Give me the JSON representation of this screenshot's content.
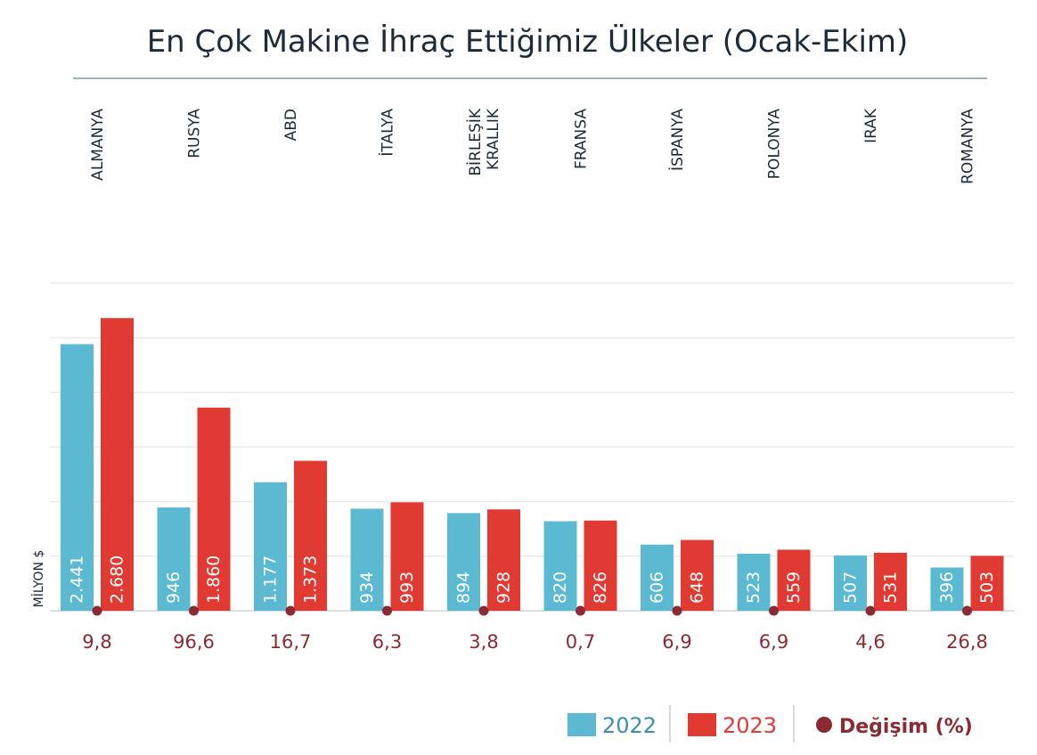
{
  "chart_data": {
    "type": "bar",
    "title": "En Çok Makine İhraç Ettiğimiz Ülkeler (Ocak-Ekim)",
    "ylabel": "MİLYON $",
    "ylim": [
      0,
      3000
    ],
    "grid": true,
    "legend_position": "bottom-right",
    "categories": [
      [
        "ALMANYA"
      ],
      [
        "RUSYA"
      ],
      [
        "ABD"
      ],
      [
        "İTALYA"
      ],
      [
        "BİRLEŞİK",
        "KRALLIK"
      ],
      [
        "FRANSA"
      ],
      [
        "İSPANYA"
      ],
      [
        "POLONYA"
      ],
      [
        "IRAK"
      ],
      [
        "ROMANYA"
      ]
    ],
    "series": [
      {
        "name": "2022",
        "color": "#5bbad2",
        "values": [
          2441,
          946,
          1177,
          934,
          894,
          820,
          606,
          523,
          507,
          396
        ],
        "labels": [
          "2.441",
          "946",
          "1.177",
          "934",
          "894",
          "820",
          "606",
          "523",
          "507",
          "396"
        ]
      },
      {
        "name": "2023",
        "color": "#e03a33",
        "values": [
          2680,
          1860,
          1373,
          993,
          928,
          826,
          648,
          559,
          531,
          503
        ],
        "labels": [
          "2.680",
          "1.860",
          "1.373",
          "993",
          "928",
          "826",
          "648",
          "559",
          "531",
          "503"
        ]
      }
    ],
    "change": {
      "name": "Değişim (%)",
      "color": "#8c2a34",
      "values": [
        "9,8",
        "96,6",
        "16,7",
        "6,3",
        "3,8",
        "0,7",
        "6,9",
        "6,9",
        "4,6",
        "26,8"
      ]
    }
  }
}
